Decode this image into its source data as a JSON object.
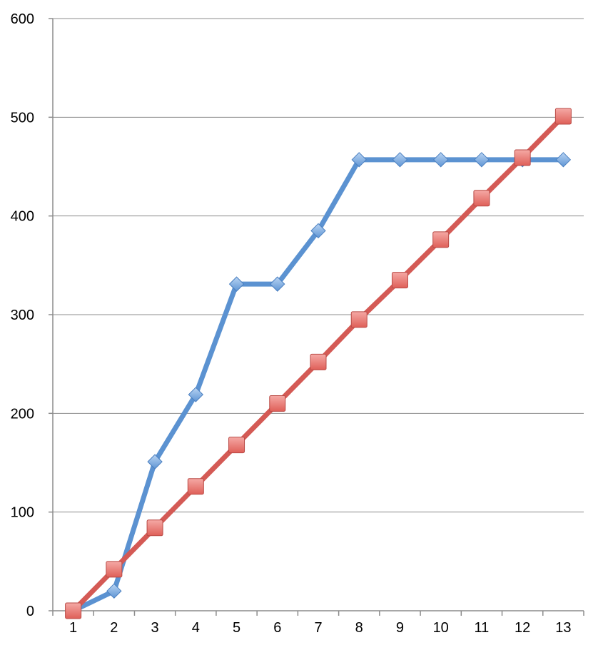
{
  "chart_data": {
    "type": "line",
    "x": [
      "1",
      "2",
      "3",
      "4",
      "5",
      "6",
      "7",
      "8",
      "9",
      "10",
      "11",
      "12",
      "13"
    ],
    "ylim": [
      0,
      600
    ],
    "yticks": [
      0,
      100,
      200,
      300,
      400,
      500,
      600
    ],
    "grid": true,
    "legend": "none",
    "series": [
      {
        "marker": "diamond",
        "color": "#5b92d1",
        "values": [
          0,
          20,
          151,
          219,
          331,
          331,
          385,
          457,
          457,
          457,
          457,
          457,
          457
        ]
      },
      {
        "marker": "square",
        "color": "#d45a55",
        "values": [
          0,
          42,
          84,
          126,
          168,
          210,
          252,
          295,
          335,
          376,
          418,
          459,
          501
        ]
      }
    ]
  }
}
